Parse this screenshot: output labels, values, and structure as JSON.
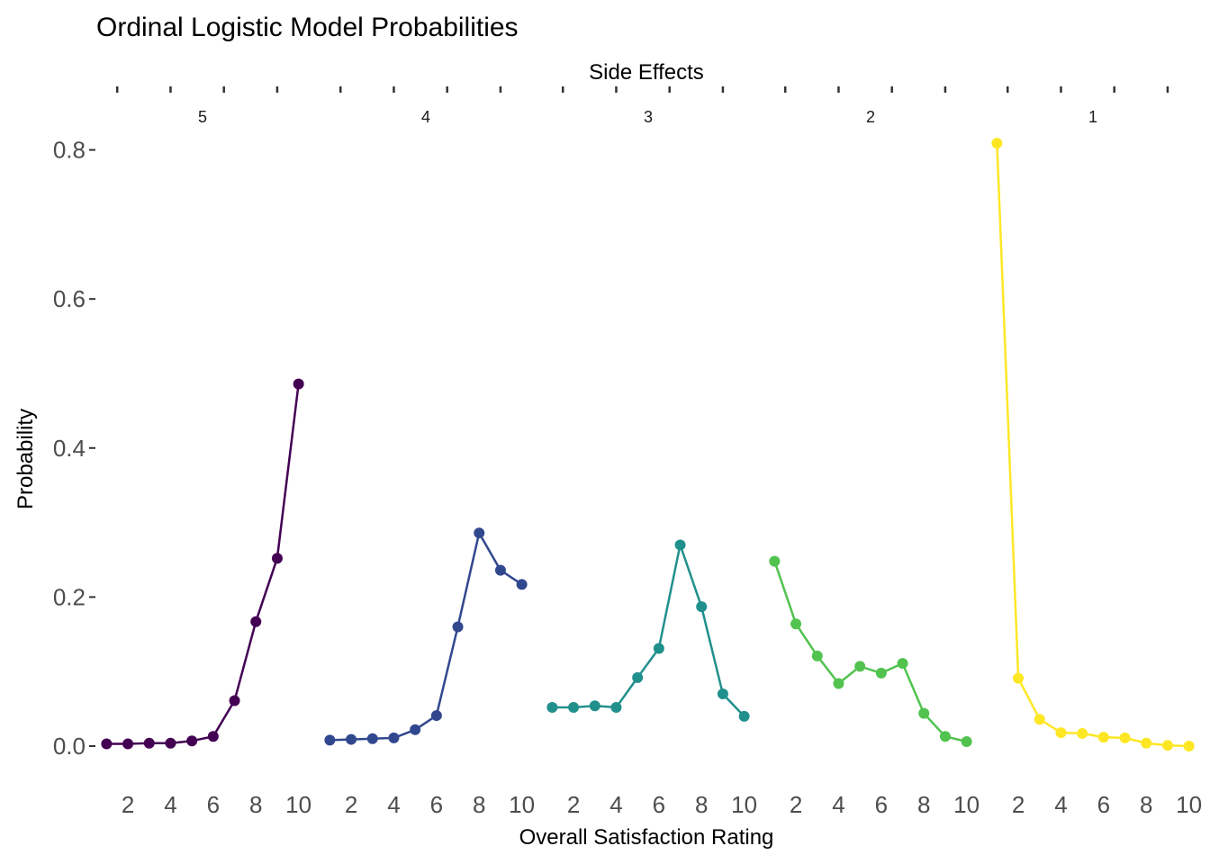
{
  "chart_data": {
    "type": "line",
    "title": "Ordinal Logistic Model Probabilities",
    "facet_title": "Side Effects",
    "xlabel": "Overall Satisfaction Rating",
    "ylabel": "Probability",
    "ylim": [
      -0.035,
      0.82
    ],
    "yticks": [
      0.0,
      0.2,
      0.4,
      0.6,
      0.8
    ],
    "ytick_labels": [
      "0.0",
      "0.2",
      "0.4",
      "0.6",
      "0.8"
    ],
    "xticks": [
      2,
      4,
      6,
      8,
      10
    ],
    "xtick_labels": [
      "2",
      "4",
      "6",
      "8",
      "10"
    ],
    "x": [
      1,
      2,
      3,
      4,
      5,
      6,
      7,
      8,
      9,
      10
    ],
    "grid": false,
    "legend": "none",
    "series": [
      {
        "name": "5",
        "color": "#440154",
        "values": [
          0.003,
          0.003,
          0.004,
          0.004,
          0.007,
          0.013,
          0.061,
          0.167,
          0.252,
          0.486
        ]
      },
      {
        "name": "4",
        "color": "#31488e",
        "values": [
          0.008,
          0.009,
          0.01,
          0.011,
          0.022,
          0.041,
          0.16,
          0.286,
          0.236,
          0.217
        ]
      },
      {
        "name": "3",
        "color": "#21908d",
        "values": [
          0.052,
          0.052,
          0.054,
          0.052,
          0.092,
          0.131,
          0.27,
          0.187,
          0.07,
          0.04
        ]
      },
      {
        "name": "2",
        "color": "#52c34f",
        "values": [
          0.248,
          0.164,
          0.121,
          0.084,
          0.107,
          0.098,
          0.111,
          0.044,
          0.013,
          0.006
        ]
      },
      {
        "name": "1",
        "color": "#fde725",
        "values": [
          0.809,
          0.091,
          0.036,
          0.018,
          0.017,
          0.012,
          0.011,
          0.004,
          0.001,
          0.0
        ]
      }
    ]
  }
}
